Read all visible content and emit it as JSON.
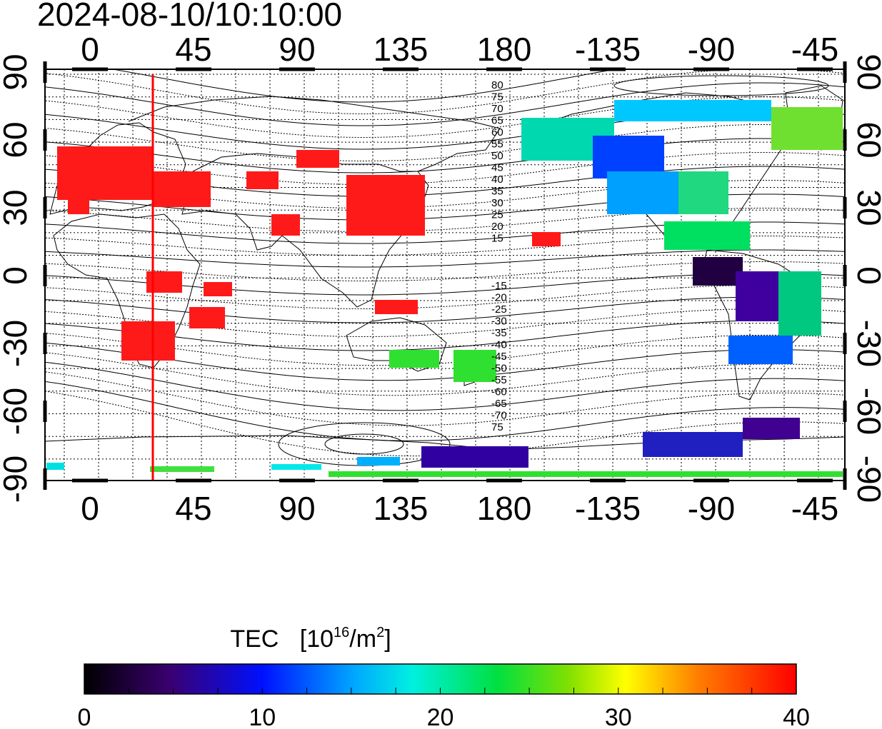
{
  "timestamp": "2024-08-10/10:10:00",
  "top_lon_ticks": [
    "0",
    "45",
    "90",
    "135",
    "180",
    "-135",
    "-90",
    "-45"
  ],
  "bottom_lon_ticks": [
    "0",
    "45",
    "90",
    "135",
    "180",
    "-135",
    "-90",
    "-45"
  ],
  "left_lat_ticks": [
    "90",
    "60",
    "30",
    "0",
    "-30",
    "-60",
    "-90"
  ],
  "right_lat_ticks": [
    "90",
    "60",
    "30",
    "0",
    "-30",
    "-60",
    "-90"
  ],
  "contour_labels_north": [
    "80",
    "75",
    "70",
    "65",
    "60",
    "55",
    "50",
    "45",
    "40",
    "35",
    "30",
    "25",
    "20",
    "15"
  ],
  "contour_labels_south": [
    "-15",
    "-20",
    "-25",
    "-30",
    "-35",
    "-40",
    "-45",
    "-50",
    "-55",
    "-60",
    "-65",
    "-70",
    "75"
  ],
  "colorbar": {
    "title": "TEC",
    "unit_base": "[10",
    "unit_exp": "16",
    "unit_mid": "/m",
    "unit_exp2": "2",
    "unit_end": "]",
    "ticks": [
      "0",
      "10",
      "20",
      "30",
      "40"
    ]
  },
  "colors": {
    "terminator": "#ff0000",
    "frame": "#000000"
  }
}
